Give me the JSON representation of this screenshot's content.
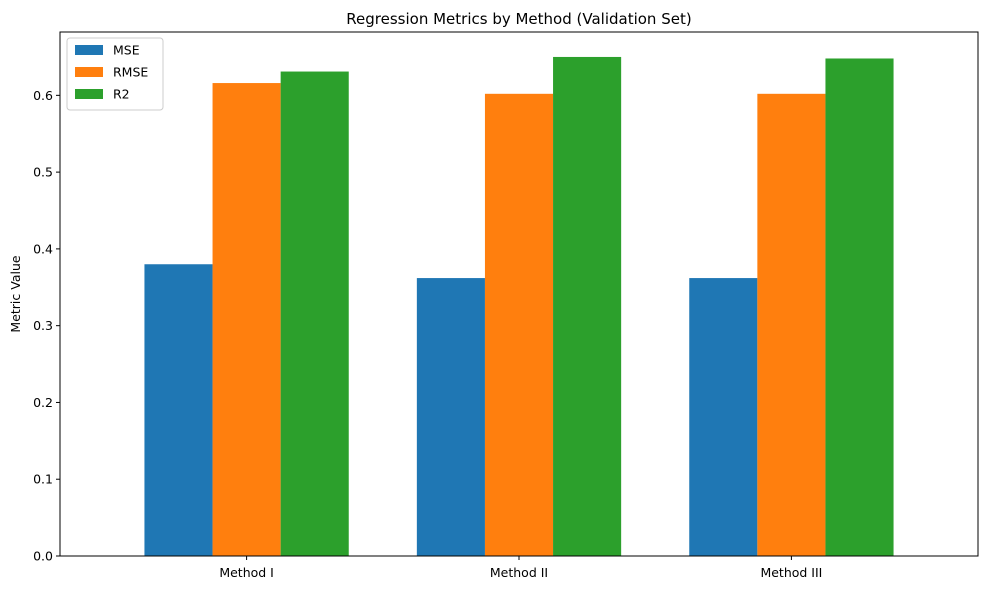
{
  "chart_data": {
    "type": "bar",
    "title": "Regression Metrics by Method (Validation Set)",
    "xlabel": "",
    "ylabel": "Metric Value",
    "categories": [
      "Method I",
      "Method II",
      "Method III"
    ],
    "series": [
      {
        "name": "MSE",
        "color": "#1f77b4",
        "values": [
          0.38,
          0.362,
          0.362
        ]
      },
      {
        "name": "RMSE",
        "color": "#ff7f0e",
        "values": [
          0.616,
          0.602,
          0.602
        ]
      },
      {
        "name": "R2",
        "color": "#2ca02c",
        "values": [
          0.631,
          0.65,
          0.648
        ]
      }
    ],
    "ylim": [
      0,
      0.6825
    ],
    "yticks": [
      0.0,
      0.1,
      0.2,
      0.3,
      0.4,
      0.5,
      0.6
    ],
    "ytick_labels": [
      "0.0",
      "0.1",
      "0.2",
      "0.3",
      "0.4",
      "0.5",
      "0.6"
    ],
    "grid": false,
    "legend_position": "top-left"
  }
}
